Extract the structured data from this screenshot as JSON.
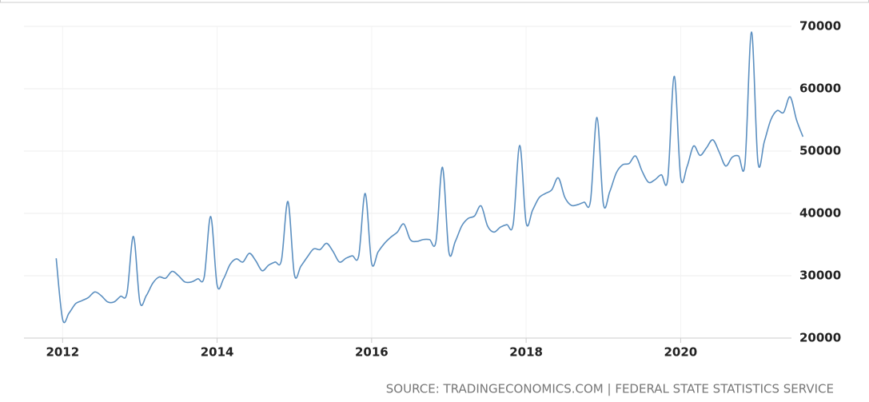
{
  "chart_data": {
    "type": "line",
    "source": "SOURCE: TRADINGECONOMICS.COM | FEDERAL STATE STATISTICS SERVICE",
    "x": [
      2011.917,
      2012,
      2012.083,
      2012.167,
      2012.25,
      2012.333,
      2012.417,
      2012.5,
      2012.583,
      2012.667,
      2012.75,
      2012.833,
      2012.917,
      2013,
      2013.083,
      2013.167,
      2013.25,
      2013.333,
      2013.417,
      2013.5,
      2013.583,
      2013.667,
      2013.75,
      2013.833,
      2013.917,
      2014,
      2014.083,
      2014.167,
      2014.25,
      2014.333,
      2014.417,
      2014.5,
      2014.583,
      2014.667,
      2014.75,
      2014.833,
      2014.917,
      2015,
      2015.083,
      2015.167,
      2015.25,
      2015.333,
      2015.417,
      2015.5,
      2015.583,
      2015.667,
      2015.75,
      2015.833,
      2015.917,
      2016,
      2016.083,
      2016.167,
      2016.25,
      2016.333,
      2016.417,
      2016.5,
      2016.583,
      2016.667,
      2016.75,
      2016.833,
      2016.917,
      2017,
      2017.083,
      2017.167,
      2017.25,
      2017.333,
      2017.417,
      2017.5,
      2017.583,
      2017.667,
      2017.75,
      2017.833,
      2017.917,
      2018,
      2018.083,
      2018.167,
      2018.25,
      2018.333,
      2018.417,
      2018.5,
      2018.583,
      2018.667,
      2018.75,
      2018.833,
      2018.917,
      2019,
      2019.083,
      2019.167,
      2019.25,
      2019.333,
      2019.417,
      2019.5,
      2019.583,
      2019.667,
      2019.75,
      2019.833,
      2019.917,
      2020,
      2020.083,
      2020.167,
      2020.25,
      2020.333,
      2020.417,
      2020.5,
      2020.583,
      2020.667,
      2020.75,
      2020.833,
      2020.917,
      2021,
      2021.083,
      2021.167,
      2021.25,
      2021.333,
      2021.417,
      2021.5,
      2021.583
    ],
    "series": [
      {
        "color": "#5b8fc0",
        "values": [
          32800,
          23000,
          24000,
          25500,
          26000,
          26500,
          27400,
          26800,
          25800,
          25800,
          26700,
          27200,
          36300,
          25800,
          26800,
          28800,
          29800,
          29600,
          30700,
          30000,
          29000,
          29000,
          29500,
          29800,
          39500,
          28500,
          29500,
          31800,
          32700,
          32200,
          33600,
          32400,
          30800,
          31700,
          32200,
          32500,
          41900,
          30200,
          31500,
          33000,
          34300,
          34200,
          35200,
          33900,
          32200,
          32800,
          33200,
          33200,
          43200,
          32000,
          33800,
          35200,
          36200,
          37000,
          38300,
          35800,
          35500,
          35800,
          35800,
          35500,
          47400,
          33800,
          35500,
          38000,
          39200,
          39600,
          41200,
          38000,
          37000,
          37800,
          38200,
          38300,
          50900,
          38500,
          40500,
          42500,
          43200,
          43800,
          45700,
          42600,
          41300,
          41400,
          41800,
          42000,
          55400,
          41500,
          43500,
          46500,
          47800,
          48000,
          49200,
          46800,
          45000,
          45400,
          46200,
          45500,
          62000,
          45800,
          47500,
          50800,
          49300,
          50500,
          51800,
          49800,
          47600,
          49000,
          49200,
          48000,
          69100,
          48300,
          51500,
          55000,
          56500,
          56200,
          58700,
          55000,
          52300
        ]
      }
    ],
    "xlim": [
      2011.5,
      2021.6
    ],
    "xticks": [
      2012,
      2014,
      2016,
      2018,
      2020
    ],
    "ylim": [
      20000,
      70000
    ],
    "yticks": [
      20000,
      30000,
      40000,
      50000,
      60000,
      70000
    ],
    "grid": true
  }
}
